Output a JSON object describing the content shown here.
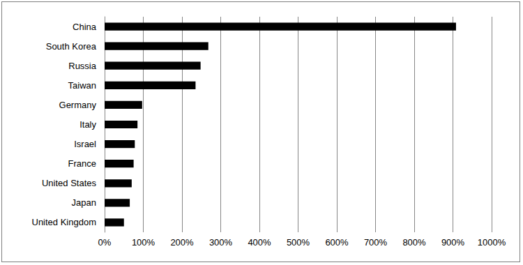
{
  "chart_data": {
    "type": "bar",
    "orientation": "horizontal",
    "categories": [
      "China",
      "South Korea",
      "Russia",
      "Taiwan",
      "Germany",
      "Italy",
      "Israel",
      "France",
      "United States",
      "Japan",
      "United Kingdom"
    ],
    "values": [
      908,
      268,
      248,
      235,
      97,
      85,
      78,
      75,
      70,
      65,
      50
    ],
    "color": "#000000",
    "xlim": [
      0,
      1000
    ],
    "xticks": [
      {
        "value": 0,
        "label": "0%"
      },
      {
        "value": 100,
        "label": "100%"
      },
      {
        "value": 200,
        "label": "200%"
      },
      {
        "value": 300,
        "label": "300%"
      },
      {
        "value": 400,
        "label": "400%"
      },
      {
        "value": 500,
        "label": "500%"
      },
      {
        "value": 600,
        "label": "600%"
      },
      {
        "value": 700,
        "label": "700%"
      },
      {
        "value": 800,
        "label": "800%"
      },
      {
        "value": 900,
        "label": "900%"
      },
      {
        "value": 1000,
        "label": "1000%"
      }
    ],
    "grid": true
  }
}
